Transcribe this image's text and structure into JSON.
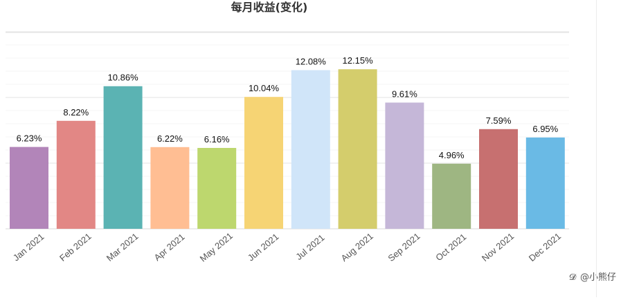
{
  "chart_data": {
    "type": "bar",
    "title": "每月收益(变化)",
    "xlabel": "",
    "ylabel": "",
    "categories": [
      "Jan 2021",
      "Feb 2021",
      "Mar 2021",
      "Apr 2021",
      "May 2021",
      "Jun 2021",
      "Jul 2021",
      "Aug 2021",
      "Sep 2021",
      "Oct 2021",
      "Nov 2021",
      "Dec 2021"
    ],
    "values": [
      6.23,
      8.22,
      10.86,
      6.22,
      6.16,
      10.04,
      12.08,
      12.15,
      9.61,
      4.96,
      7.59,
      6.95
    ],
    "value_labels": [
      "6.23%",
      "8.22%",
      "10.86%",
      "6.22%",
      "6.16%",
      "10.04%",
      "12.08%",
      "12.15%",
      "9.61%",
      "4.96%",
      "7.59%",
      "6.95%"
    ],
    "colors": [
      "#b285b9",
      "#e28785",
      "#5bb3b3",
      "#ffbe93",
      "#bdd76e",
      "#f6d474",
      "#d0e5f9",
      "#d4cd6c",
      "#c5b7d8",
      "#9eb682",
      "#c77070",
      "#6abae5"
    ],
    "ylim": [
      0,
      14
    ],
    "grid": true,
    "legend": "none"
  },
  "watermark": {
    "text": "@小熊仔"
  }
}
